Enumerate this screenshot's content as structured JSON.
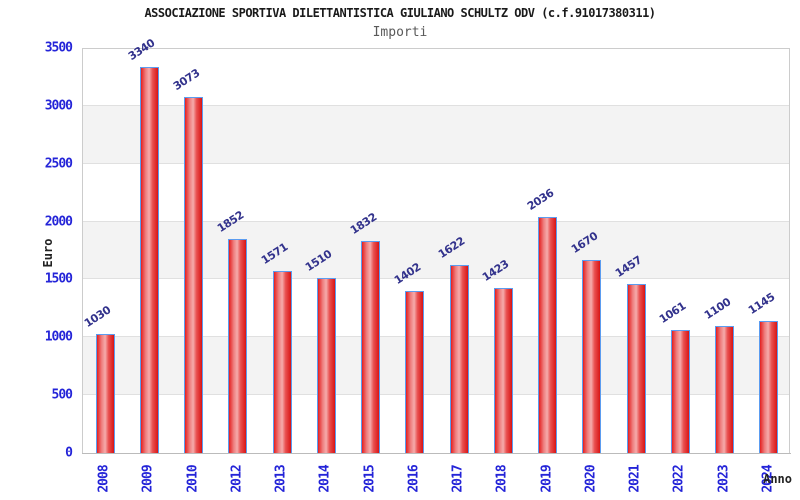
{
  "chart_data": {
    "type": "bar",
    "title": "ASSOCIAZIONE SPORTIVA DILETTANTISTICA GIULIANO SCHULTZ ODV (c.f.91017380311)",
    "subtitle": "Importi",
    "xlabel": "Anno",
    "ylabel": "Euro",
    "categories": [
      "2008",
      "2009",
      "2010",
      "2012",
      "2013",
      "2014",
      "2015",
      "2016",
      "2017",
      "2018",
      "2019",
      "2020",
      "2021",
      "2022",
      "2023",
      "2024"
    ],
    "values": [
      1030,
      3340,
      3073,
      1852,
      1571,
      1510,
      1832,
      1402,
      1622,
      1423,
      2036,
      1670,
      1457,
      1061,
      1100,
      1145
    ],
    "ylim": [
      0,
      3500
    ],
    "ytick_step": 500,
    "yticks": [
      0,
      500,
      1000,
      1500,
      2000,
      2500,
      3000,
      3500
    ],
    "grid": "horizontal gridlines with alternating shaded bands",
    "legend_position": "none",
    "colors": {
      "bar_fill": "#e41f1f",
      "bar_highlight": "#f5abab",
      "bar_border": "#5b9cf0",
      "tick_label": "#2424d8",
      "value_label": "#32328c",
      "band": "#f3f3f3",
      "gridline": "#e0e0e0",
      "title": "#1a1a1a",
      "subtitle": "#5a5a5a",
      "axis_label": "#222222"
    }
  }
}
